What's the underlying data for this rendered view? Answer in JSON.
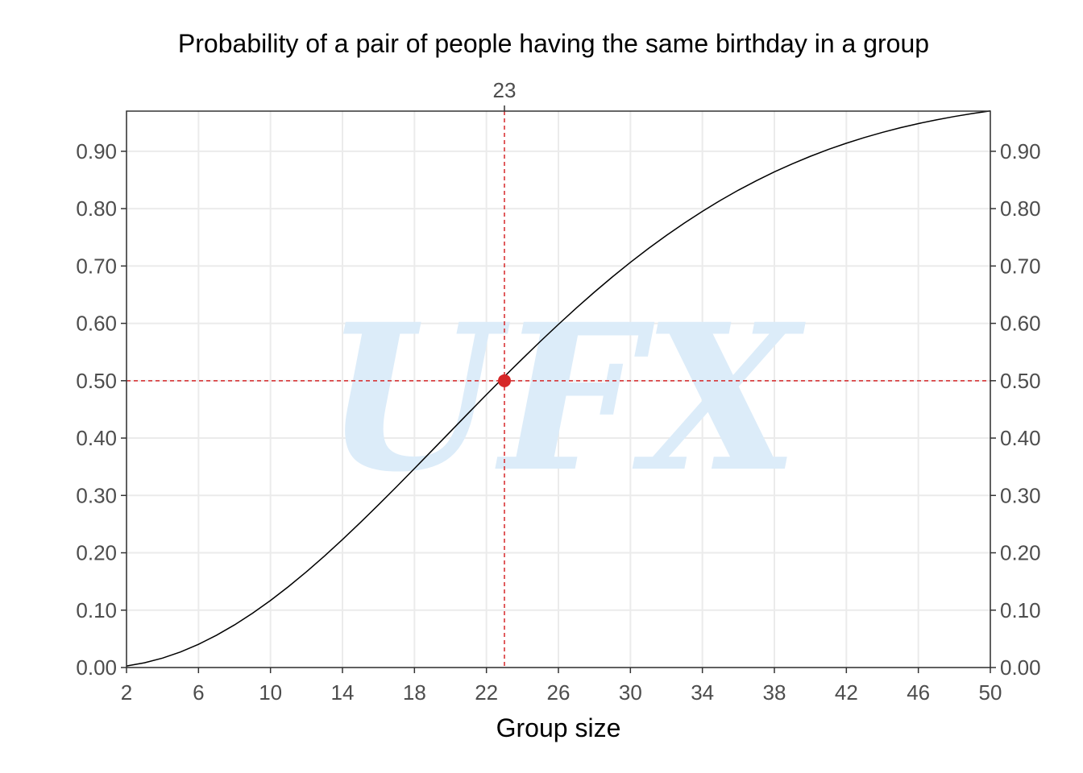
{
  "chart_data": {
    "type": "line",
    "title": "Probability of a pair of people having the same birthday in a group",
    "xlabel": "Group size",
    "ylabel": "",
    "xlim": [
      2,
      50
    ],
    "ylim": [
      0,
      0.97
    ],
    "x_ticks": [
      2,
      6,
      10,
      14,
      18,
      22,
      26,
      30,
      34,
      38,
      42,
      46,
      50
    ],
    "y_ticks": [
      "0.00",
      "0.10",
      "0.20",
      "0.30",
      "0.40",
      "0.50",
      "0.60",
      "0.70",
      "0.80",
      "0.90"
    ],
    "top_axis_ticks": [
      23
    ],
    "grid": true,
    "legend": "none",
    "series": [
      {
        "x": [
          2,
          3,
          4,
          5,
          6,
          7,
          8,
          9,
          10,
          11,
          12,
          13,
          14,
          15,
          16,
          17,
          18,
          19,
          20,
          21,
          22,
          23,
          24,
          25,
          26,
          27,
          28,
          29,
          30,
          31,
          32,
          33,
          34,
          35,
          36,
          37,
          38,
          39,
          40,
          41,
          42,
          43,
          44,
          45,
          46,
          47,
          48,
          49,
          50
        ],
        "values": [
          0.0027,
          0.0082,
          0.0164,
          0.0271,
          0.0405,
          0.0562,
          0.0743,
          0.0946,
          0.1169,
          0.1411,
          0.167,
          0.1944,
          0.2231,
          0.2529,
          0.2836,
          0.315,
          0.3469,
          0.3791,
          0.4114,
          0.4437,
          0.4757,
          0.5073,
          0.5383,
          0.5687,
          0.5982,
          0.6269,
          0.6545,
          0.681,
          0.7063,
          0.7305,
          0.7533,
          0.7749,
          0.7953,
          0.8144,
          0.8322,
          0.8487,
          0.8641,
          0.8782,
          0.8912,
          0.9032,
          0.914,
          0.9239,
          0.9329,
          0.941,
          0.9483,
          0.9548,
          0.9606,
          0.9658,
          0.9704
        ],
        "color": "#000000"
      }
    ],
    "highlight": {
      "x": 23,
      "y": 0.5,
      "color": "#d62728",
      "vline_x": 23,
      "hline_y": 0.5
    },
    "watermark": "UFX",
    "watermark_color": "#dcecf9"
  }
}
